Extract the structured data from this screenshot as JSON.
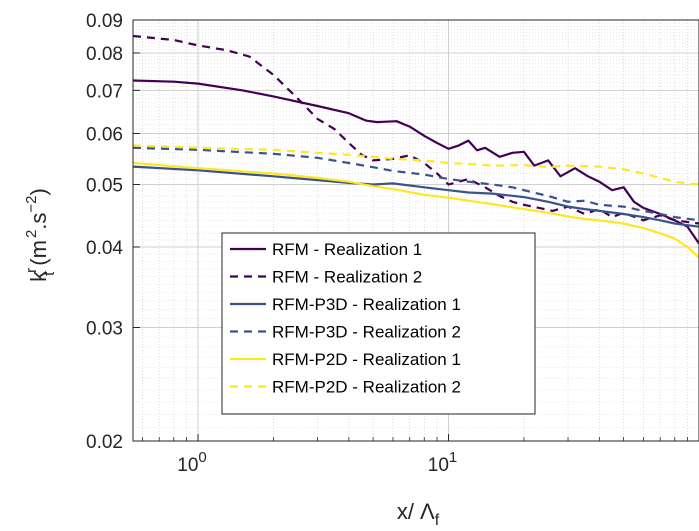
{
  "chart_data": {
    "type": "line",
    "x_scale": "log",
    "y_scale": "log",
    "xlim": [
      0.55,
      100
    ],
    "ylim": [
      0.02,
      0.09
    ],
    "grid": true,
    "minor_grid": true,
    "xlabel_main": "x/ Λ",
    "xlabel_sub": "f",
    "ylabel_main": "k",
    "ylabel_sup": "r",
    "ylabel_sub": "t",
    "ylabel_units": "(m",
    "ylabel_units_sup1": "2",
    "ylabel_units_mid": ".s",
    "ylabel_units_sup2": "−2",
    "ylabel_units_end": ")",
    "x_ticks": [
      {
        "base": "10",
        "exp": "0",
        "value": 1
      },
      {
        "base": "10",
        "exp": "1",
        "value": 10
      }
    ],
    "y_ticks": [
      {
        "label": "0.02",
        "value": 0.02
      },
      {
        "label": "0.03",
        "value": 0.03
      },
      {
        "label": "0.04",
        "value": 0.04
      },
      {
        "label": "0.05",
        "value": 0.05
      },
      {
        "label": "0.06",
        "value": 0.06
      },
      {
        "label": "0.07",
        "value": 0.07
      },
      {
        "label": "0.08",
        "value": 0.08
      },
      {
        "label": "0.09",
        "value": 0.09
      }
    ],
    "legend_position": "lower-left",
    "series": [
      {
        "name": "RFM - Realization 1",
        "color": "#440154",
        "dash": "solid",
        "x": [
          0.55,
          0.8,
          1.0,
          1.5,
          2.0,
          3.0,
          4.0,
          4.7,
          5.2,
          6.2,
          7.0,
          8.0,
          9.0,
          10.0,
          11.0,
          12.0,
          13.0,
          14.0,
          16.0,
          18.0,
          20.0,
          22.0,
          25.0,
          28.0,
          32.0,
          36.0,
          40.0,
          45.0,
          50.0,
          55.0,
          60.0,
          70.0,
          80.0,
          90.0,
          100.0
        ],
        "y": [
          0.0725,
          0.0722,
          0.0717,
          0.07,
          0.0685,
          0.0662,
          0.0645,
          0.0628,
          0.0625,
          0.0627,
          0.0615,
          0.0595,
          0.058,
          0.0568,
          0.0575,
          0.0585,
          0.0565,
          0.057,
          0.0552,
          0.056,
          0.0562,
          0.0535,
          0.0545,
          0.0515,
          0.053,
          0.0515,
          0.0505,
          0.049,
          0.0495,
          0.047,
          0.046,
          0.045,
          0.044,
          0.043,
          0.0405
        ]
      },
      {
        "name": "RFM - Realization 2",
        "color": "#440154",
        "dash": "dashed",
        "x": [
          0.55,
          0.8,
          1.0,
          1.3,
          1.6,
          2.0,
          2.5,
          3.0,
          3.5,
          4.0,
          4.5,
          5.0,
          6.0,
          7.0,
          8.0,
          9.0,
          10.0,
          12.0,
          14.0,
          16.0,
          18.0,
          20.0,
          23.0,
          26.0,
          30.0,
          35.0,
          40.0,
          45.0,
          50.0,
          60.0,
          70.0,
          80.0,
          100.0
        ],
        "y": [
          0.085,
          0.0838,
          0.0822,
          0.0808,
          0.079,
          0.074,
          0.068,
          0.0632,
          0.061,
          0.058,
          0.0556,
          0.0545,
          0.0548,
          0.0555,
          0.054,
          0.052,
          0.05,
          0.051,
          0.0495,
          0.048,
          0.047,
          0.0465,
          0.046,
          0.0455,
          0.0462,
          0.045,
          0.0458,
          0.0445,
          0.0452,
          0.044,
          0.0448,
          0.044,
          0.0435
        ]
      },
      {
        "name": "RFM-P3D - Realization 1",
        "color": "#3b528b",
        "dash": "solid",
        "x": [
          0.55,
          1.0,
          2.0,
          3.0,
          4.0,
          5.0,
          6.0,
          8.0,
          10.0,
          12.0,
          15.0,
          20.0,
          25.0,
          30.0,
          35.0,
          40.0,
          50.0,
          60.0,
          70.0,
          80.0,
          100.0
        ],
        "y": [
          0.0533,
          0.0526,
          0.0515,
          0.0508,
          0.0503,
          0.05,
          0.0502,
          0.0495,
          0.049,
          0.0486,
          0.0484,
          0.0478,
          0.047,
          0.0462,
          0.0458,
          0.0455,
          0.045,
          0.0445,
          0.044,
          0.0435,
          0.043
        ]
      },
      {
        "name": "RFM-P3D - Realization 2",
        "color": "#3b528b",
        "dash": "dashed",
        "x": [
          0.55,
          1.0,
          2.0,
          3.0,
          4.0,
          5.0,
          6.0,
          8.0,
          10.0,
          12.0,
          15.0,
          18.0,
          20.0,
          25.0,
          30.0,
          35.0,
          40.0,
          50.0,
          60.0,
          70.0,
          80.0,
          100.0
        ],
        "y": [
          0.057,
          0.0566,
          0.0558,
          0.055,
          0.054,
          0.0532,
          0.0525,
          0.0518,
          0.051,
          0.0505,
          0.05,
          0.0495,
          0.049,
          0.048,
          0.047,
          0.0472,
          0.0465,
          0.0462,
          0.0455,
          0.045,
          0.0445,
          0.044
        ]
      },
      {
        "name": "RFM-P2D - Realization 1",
        "color": "#fde725",
        "dash": "solid",
        "x": [
          0.55,
          1.0,
          2.0,
          3.0,
          4.0,
          5.0,
          6.0,
          8.0,
          10.0,
          12.0,
          15.0,
          20.0,
          25.0,
          30.0,
          35.0,
          40.0,
          50.0,
          60.0,
          70.0,
          80.0,
          90.0,
          100.0
        ],
        "y": [
          0.054,
          0.053,
          0.052,
          0.0512,
          0.0505,
          0.0497,
          0.0492,
          0.0482,
          0.0477,
          0.0472,
          0.0466,
          0.0458,
          0.0452,
          0.0446,
          0.0442,
          0.044,
          0.0435,
          0.0428,
          0.042,
          0.0412,
          0.04,
          0.0385
        ]
      },
      {
        "name": "RFM-P2D - Realization 2",
        "color": "#fde725",
        "dash": "dashed",
        "x": [
          0.55,
          1.0,
          2.0,
          3.0,
          4.0,
          5.0,
          6.0,
          8.0,
          10.0,
          12.0,
          15.0,
          20.0,
          25.0,
          30.0,
          40.0,
          50.0,
          60.0,
          70.0,
          80.0,
          90.0,
          100.0
        ],
        "y": [
          0.0575,
          0.057,
          0.0566,
          0.056,
          0.0556,
          0.0552,
          0.0548,
          0.0545,
          0.054,
          0.0538,
          0.0535,
          0.0536,
          0.0532,
          0.0535,
          0.0533,
          0.0528,
          0.052,
          0.0512,
          0.0505,
          0.0502,
          0.05
        ]
      }
    ]
  }
}
